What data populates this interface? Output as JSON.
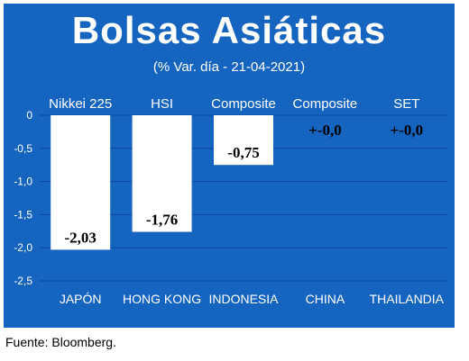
{
  "chart_data": {
    "type": "bar",
    "title": "Bolsas Asiáticas",
    "subtitle": "(% Var. día - 21-04-2021)",
    "categories": [
      "JAPÓN",
      "HONG KONG",
      "INDONESIA",
      "CHINA",
      "THAILANDIA"
    ],
    "index_names": [
      "Nikkei 225",
      "HSI",
      "Composite",
      "Composite",
      "SET"
    ],
    "values": [
      -2.03,
      -1.76,
      -0.75,
      0.0,
      0.0
    ],
    "value_labels": [
      "-2,03",
      "-1,76",
      "-0,75",
      "+-0,0",
      "+-0,0"
    ],
    "ylim": [
      -2.5,
      0
    ],
    "yticks": [
      0,
      -0.5,
      -1.0,
      -1.5,
      -2.0,
      -2.5
    ],
    "ytick_labels": [
      "0",
      "-0,5",
      "-1,0",
      "-1,5",
      "-2,0",
      "-2,5"
    ],
    "grid": true,
    "colors": {
      "background": "#1565c0",
      "bar": "#ffffff",
      "grid": "#0d47a1",
      "text": "#ffffff"
    }
  },
  "source": "Fuente: Bloomberg."
}
